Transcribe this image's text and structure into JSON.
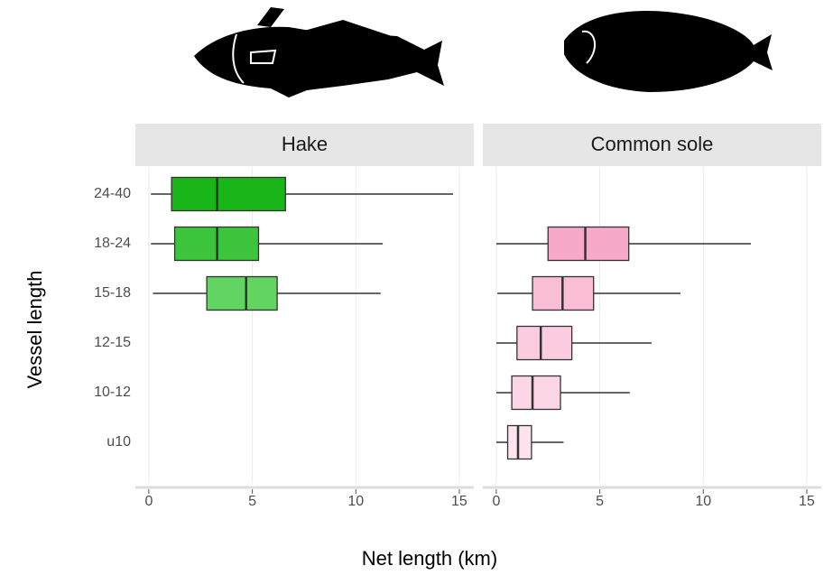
{
  "chart_data": {
    "type": "boxplot",
    "x_label": "Net length (km)",
    "y_label": "Vessel length",
    "categories": [
      "24-40",
      "18-24",
      "15-18",
      "12-15",
      "10-12",
      "u10"
    ],
    "xlim": [
      -0.65,
      15.7
    ],
    "xticks": [
      0,
      5,
      10,
      15
    ],
    "grid": true,
    "facets": [
      {
        "title": "Hake",
        "boxes": [
          {
            "min": 0.1,
            "q1": 1.1,
            "median": 3.3,
            "q3": 6.6,
            "max": 14.7,
            "color": "#19b519"
          },
          {
            "min": 0.1,
            "q1": 1.25,
            "median": 3.3,
            "q3": 5.3,
            "max": 11.3,
            "color": "#3cc43c"
          },
          {
            "min": 0.2,
            "q1": 2.8,
            "median": 4.7,
            "q3": 6.2,
            "max": 11.2,
            "color": "#62d462"
          },
          null,
          null,
          null
        ]
      },
      {
        "title": "Common sole",
        "boxes": [
          null,
          {
            "min": 0,
            "q1": 2.5,
            "median": 4.3,
            "q3": 6.4,
            "max": 12.3,
            "color": "#f7a9c9"
          },
          {
            "min": 0.05,
            "q1": 1.75,
            "median": 3.2,
            "q3": 4.7,
            "max": 8.9,
            "color": "#f9bdd6"
          },
          {
            "min": 0,
            "q1": 1.0,
            "median": 2.15,
            "q3": 3.65,
            "max": 7.5,
            "color": "#fbcbdf"
          },
          {
            "min": 0,
            "q1": 0.75,
            "median": 1.75,
            "q3": 3.1,
            "max": 6.45,
            "color": "#fcd6e6"
          },
          {
            "min": 0,
            "q1": 0.55,
            "median": 1.05,
            "q3": 1.7,
            "max": 3.25,
            "color": "#fde3ee"
          }
        ]
      }
    ]
  }
}
